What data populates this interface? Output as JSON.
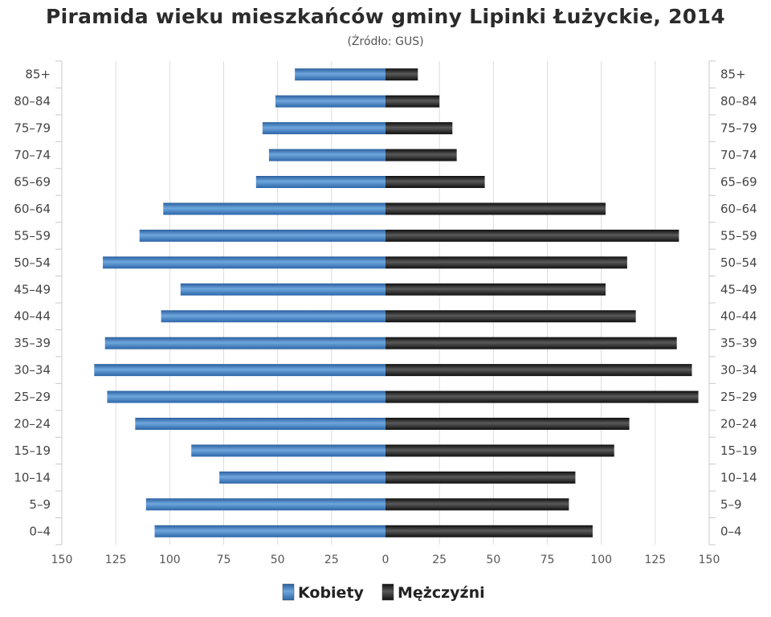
{
  "chart_data": {
    "type": "bar",
    "orientation": "horizontal-population-pyramid",
    "title": "Piramida wieku mieszkańców gminy Lipinki Łużyckie, 2014",
    "subtitle": "(Źródło: GUS)",
    "categories": [
      "85+",
      "80–84",
      "75–79",
      "70–74",
      "65–69",
      "60–64",
      "55–59",
      "50–54",
      "45–49",
      "40–44",
      "35–39",
      "30–34",
      "25–29",
      "20–24",
      "15–19",
      "10–14",
      "5–9",
      "0–4"
    ],
    "series": [
      {
        "name": "Kobiety",
        "color": "#3f7fc0",
        "side": "left",
        "values": [
          42,
          51,
          57,
          54,
          60,
          103,
          114,
          131,
          95,
          104,
          130,
          135,
          129,
          116,
          90,
          77,
          111,
          107
        ]
      },
      {
        "name": "Mężczyźni",
        "color": "#1e1e1e",
        "side": "right",
        "values": [
          15,
          25,
          31,
          33,
          46,
          102,
          136,
          112,
          102,
          116,
          135,
          142,
          145,
          113,
          106,
          88,
          85,
          96
        ]
      }
    ],
    "x_ticks": [
      "150",
      "125",
      "100",
      "75",
      "50",
      "25",
      "0",
      "25",
      "50",
      "75",
      "100",
      "125",
      "150"
    ],
    "xlim": [
      -150,
      150
    ],
    "grid": true,
    "legend": "bottom-center"
  }
}
